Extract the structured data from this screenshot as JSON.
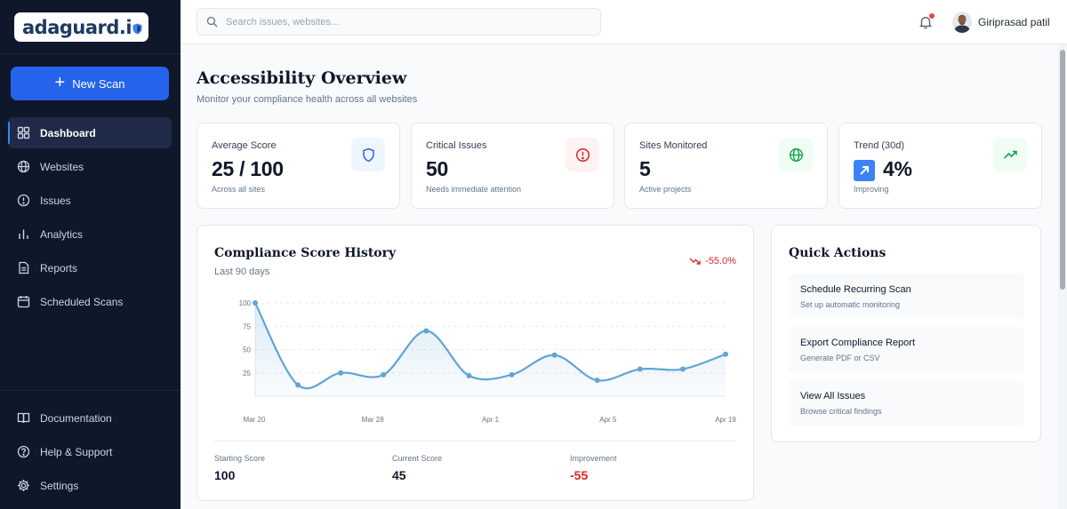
{
  "app": {
    "logo_text": "adaguard.i",
    "logo_shield_letter": "o"
  },
  "sidebar": {
    "new_scan_label": "New Scan",
    "items": [
      {
        "label": "Dashboard",
        "icon": "grid-icon",
        "active": true
      },
      {
        "label": "Websites",
        "icon": "globe-icon"
      },
      {
        "label": "Issues",
        "icon": "alert-circle-icon"
      },
      {
        "label": "Analytics",
        "icon": "bar-chart-icon"
      },
      {
        "label": "Reports",
        "icon": "file-icon"
      },
      {
        "label": "Scheduled Scans",
        "icon": "calendar-icon"
      }
    ],
    "bottom_items": [
      {
        "label": "Documentation",
        "icon": "book-icon"
      },
      {
        "label": "Help & Support",
        "icon": "help-icon"
      },
      {
        "label": "Settings",
        "icon": "gear-icon"
      }
    ]
  },
  "topbar": {
    "search_placeholder": "Search issues, websites...",
    "user_name": "Giriprasad patil"
  },
  "page": {
    "title": "Accessibility Overview",
    "subtitle": "Monitor your compliance health across all websites"
  },
  "stats": [
    {
      "label": "Average Score",
      "value": "25 / 100",
      "sub": "Across all sites",
      "icon": "shield-icon",
      "icon_color": "#2563eb",
      "icon_bg": "#eff6ff"
    },
    {
      "label": "Critical Issues",
      "value": "50",
      "sub": "Needs immediate attention",
      "icon": "alert-circle-icon",
      "icon_color": "#dc2626",
      "icon_bg": "#fef2f2"
    },
    {
      "label": "Sites Monitored",
      "value": "5",
      "sub": "Active projects",
      "icon": "globe-icon",
      "icon_color": "#16a34a",
      "icon_bg": "#f0fdf4"
    },
    {
      "label": "Trend (30d)",
      "value": "4%",
      "sub": "Improving",
      "icon": "trending-up-icon",
      "icon_color": "#16a34a",
      "icon_bg": "#f0fdf4"
    }
  ],
  "chart": {
    "title": "Compliance Score History",
    "subtitle": "Last 90 days",
    "change": "-55.0%",
    "metrics": [
      {
        "label": "Starting Score",
        "value": "100"
      },
      {
        "label": "Current Score",
        "value": "45"
      },
      {
        "label": "Improvement",
        "value": "-55"
      }
    ]
  },
  "chart_data": {
    "type": "area",
    "title": "Compliance Score History",
    "x_labels": [
      "Mar 20",
      "Mar 28",
      "Apr 1",
      "Apr 5",
      "Apr 19"
    ],
    "y_ticks": [
      100,
      75,
      50,
      25
    ],
    "ylim": [
      0,
      100
    ],
    "grid": true,
    "color": "#60a5d4",
    "series": [
      {
        "values": [
          100,
          12,
          25,
          23,
          70,
          22,
          23,
          44,
          17,
          29,
          29,
          45
        ]
      }
    ]
  },
  "quick_actions": {
    "title": "Quick Actions",
    "items": [
      {
        "title": "Schedule Recurring Scan",
        "sub": "Set up automatic monitoring"
      },
      {
        "title": "Export Compliance Report",
        "sub": "Generate PDF or CSV"
      },
      {
        "title": "View All Issues",
        "sub": "Browse critical findings"
      }
    ]
  }
}
